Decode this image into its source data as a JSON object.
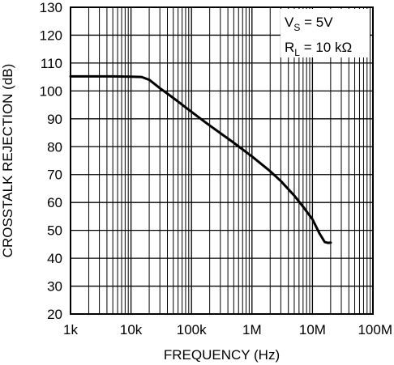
{
  "chart_data": {
    "type": "line",
    "title": "",
    "xlabel": "FREQUENCY (Hz)",
    "ylabel": "CROSSTALK REJECTION (dB)",
    "x_scale": "log",
    "xlim": [
      1000,
      100000000
    ],
    "ylim": [
      20,
      130
    ],
    "x_ticks": [
      1000,
      10000,
      100000,
      1000000,
      10000000,
      100000000
    ],
    "x_tick_labels": [
      "1k",
      "10k",
      "100k",
      "1M",
      "10M",
      "100M"
    ],
    "y_ticks": [
      20,
      30,
      40,
      50,
      60,
      70,
      80,
      90,
      100,
      110,
      120,
      130
    ],
    "y_tick_labels": [
      "20",
      "30",
      "40",
      "50",
      "60",
      "70",
      "80",
      "90",
      "100",
      "110",
      "120",
      "130"
    ],
    "grid": true,
    "annotations": [
      {
        "main": "V",
        "sub": "S",
        "rest": " = 5V"
      },
      {
        "main": "R",
        "sub": "L",
        "rest": " = 10 kΩ"
      }
    ],
    "series": [
      {
        "x": [
          1000,
          5000,
          10000,
          15000,
          20000,
          30000,
          50000,
          100000,
          200000,
          500000,
          1000000,
          2000000,
          3000000,
          5000000,
          7000000,
          10000000,
          13000000,
          16000000,
          18000000,
          20000000
        ],
        "y": [
          105.2,
          105.2,
          105.1,
          105.0,
          104.0,
          101.0,
          97.5,
          92.5,
          87.6,
          81.4,
          76.5,
          71.2,
          67.7,
          62.5,
          58.5,
          54.0,
          49.0,
          45.8,
          45.5,
          45.6
        ]
      }
    ]
  }
}
